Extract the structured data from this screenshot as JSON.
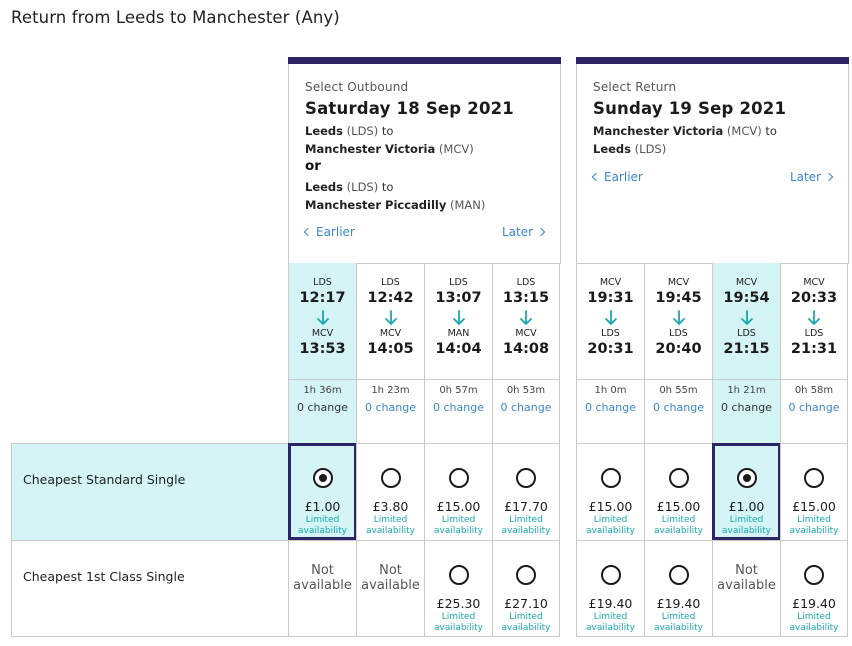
{
  "page": {
    "title": "Return from Leeds to Manchester (Any)"
  },
  "outbound": {
    "label": "Select Outbound",
    "date": "Saturday 18 Sep 2021",
    "route1_from": "Leeds",
    "route1_from_code": "(LDS)",
    "to_word": "to",
    "route1_to": "Manchester Victoria",
    "route1_to_code": "(MCV)",
    "or": "or",
    "route2_from": "Leeds",
    "route2_from_code": "(LDS)",
    "route2_to": "Manchester Piccadilly",
    "route2_to_code": "(MAN)",
    "earlier": "Earlier",
    "later": "Later"
  },
  "return": {
    "label": "Select Return",
    "date": "Sunday 19 Sep 2021",
    "route_from": "Manchester Victoria",
    "route_from_code": "(MCV)",
    "to_word": "to",
    "route_to": "Leeds",
    "route_to_code": "(LDS)",
    "earlier": "Earlier",
    "later": "Later"
  },
  "outbound_trains": [
    {
      "dep_code": "LDS",
      "dep": "12:17",
      "arr_code": "MCV",
      "arr": "13:53",
      "duration": "1h 36m",
      "changes": "0 change",
      "selected": true
    },
    {
      "dep_code": "LDS",
      "dep": "12:42",
      "arr_code": "MCV",
      "arr": "14:05",
      "duration": "1h 23m",
      "changes": "0 change",
      "selected": false
    },
    {
      "dep_code": "LDS",
      "dep": "13:07",
      "arr_code": "MAN",
      "arr": "14:04",
      "duration": "0h 57m",
      "changes": "0 change",
      "selected": false
    },
    {
      "dep_code": "LDS",
      "dep": "13:15",
      "arr_code": "MCV",
      "arr": "14:08",
      "duration": "0h 53m",
      "changes": "0 change",
      "selected": false
    }
  ],
  "return_trains": [
    {
      "dep_code": "MCV",
      "dep": "19:31",
      "arr_code": "LDS",
      "arr": "20:31",
      "duration": "1h 0m",
      "changes": "0 change",
      "selected": false
    },
    {
      "dep_code": "MCV",
      "dep": "19:45",
      "arr_code": "LDS",
      "arr": "20:40",
      "duration": "0h 55m",
      "changes": "0 change",
      "selected": false
    },
    {
      "dep_code": "MCV",
      "dep": "19:54",
      "arr_code": "LDS",
      "arr": "21:15",
      "duration": "1h 21m",
      "changes": "0 change",
      "selected": true
    },
    {
      "dep_code": "MCV",
      "dep": "20:33",
      "arr_code": "LDS",
      "arr": "21:31",
      "duration": "0h 58m",
      "changes": "0 change",
      "selected": false
    }
  ],
  "fare_rows": [
    {
      "label": "Cheapest Standard Single",
      "outbound": [
        {
          "price": "£1.00",
          "avail1": "Limited",
          "avail2": "availability",
          "available": true,
          "selected": true
        },
        {
          "price": "£3.80",
          "avail1": "Limited",
          "avail2": "availability",
          "available": true,
          "selected": false
        },
        {
          "price": "£15.00",
          "avail1": "Limited",
          "avail2": "availability",
          "available": true,
          "selected": false
        },
        {
          "price": "£17.70",
          "avail1": "Limited",
          "avail2": "availability",
          "available": true,
          "selected": false
        }
      ],
      "return": [
        {
          "price": "£15.00",
          "avail1": "Limited",
          "avail2": "availability",
          "available": true,
          "selected": false
        },
        {
          "price": "£15.00",
          "avail1": "Limited",
          "avail2": "availability",
          "available": true,
          "selected": false
        },
        {
          "price": "£1.00",
          "avail1": "Limited",
          "avail2": "availability",
          "available": true,
          "selected": true
        },
        {
          "price": "£15.00",
          "avail1": "Limited",
          "avail2": "availability",
          "available": true,
          "selected": false
        }
      ]
    },
    {
      "label": "Cheapest 1st Class Single",
      "outbound": [
        {
          "na1": "Not",
          "na2": "available",
          "available": false
        },
        {
          "na1": "Not",
          "na2": "available",
          "available": false
        },
        {
          "price": "£25.30",
          "avail1": "Limited",
          "avail2": "availability",
          "available": true,
          "selected": false
        },
        {
          "price": "£27.10",
          "avail1": "Limited",
          "avail2": "availability",
          "available": true,
          "selected": false
        }
      ],
      "return": [
        {
          "price": "£19.40",
          "avail1": "Limited",
          "avail2": "availability",
          "available": true,
          "selected": false
        },
        {
          "price": "£19.40",
          "avail1": "Limited",
          "avail2": "availability",
          "available": true,
          "selected": false
        },
        {
          "na1": "Not",
          "na2": "available",
          "available": false
        },
        {
          "price": "£19.40",
          "avail1": "Limited",
          "avail2": "availability",
          "available": true,
          "selected": false
        }
      ]
    }
  ],
  "colors": {
    "accent": "#2c2666",
    "selected_bg": "#d4f4f6",
    "link": "#3b86c9",
    "teal": "#18a9b2"
  }
}
